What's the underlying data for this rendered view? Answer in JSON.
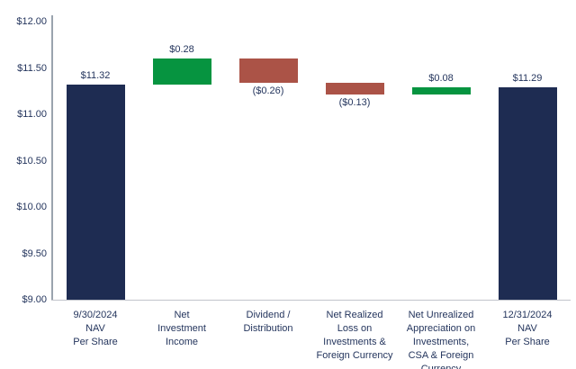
{
  "colors": {
    "navy": "#1e2c52",
    "green": "#069440",
    "red": "#ab5347",
    "label_text": "#24355d",
    "y_axis_line": "#9aa3ae",
    "baseline": "#c2c5cb",
    "background": "#ffffff"
  },
  "chart_data": {
    "type": "bar",
    "subtype": "waterfall",
    "title": "",
    "xlabel": "",
    "ylabel": "",
    "ylim": [
      9.0,
      12.0
    ],
    "grid": false,
    "legend": false,
    "y_ticks": [
      {
        "value": 12.0,
        "label": "$12.00"
      },
      {
        "value": 11.5,
        "label": "$11.50"
      },
      {
        "value": 11.0,
        "label": "$11.00"
      },
      {
        "value": 10.5,
        "label": "$10.50"
      },
      {
        "value": 10.0,
        "label": "$10.00"
      },
      {
        "value": 9.5,
        "label": "$9.50"
      },
      {
        "value": 9.0,
        "label": "$9.00"
      }
    ],
    "categories": [
      [
        "9/30/2024",
        "NAV",
        "Per Share"
      ],
      [
        "Net",
        "Investment",
        "Income"
      ],
      [
        "Dividend /",
        "Distribution"
      ],
      [
        "Net Realized",
        "Loss on",
        "Investments &",
        "Foreign Currency"
      ],
      [
        "Net Unrealized",
        "Appreciation on",
        "Investments,",
        "CSA & Foreign",
        "Currency"
      ],
      [
        "12/31/2024",
        "NAV",
        "Per Share"
      ]
    ],
    "values": [
      11.32,
      0.28,
      -0.26,
      -0.13,
      0.08,
      11.29
    ],
    "bars": [
      {
        "label": "$11.32",
        "start": 9.0,
        "end": 11.32,
        "color_key": "navy",
        "label_position": "above"
      },
      {
        "label": "$0.28",
        "start": 11.32,
        "end": 11.6,
        "color_key": "green",
        "label_position": "above"
      },
      {
        "label": "($0.26)",
        "start": 11.6,
        "end": 11.34,
        "color_key": "red",
        "label_position": "below"
      },
      {
        "label": "($0.13)",
        "start": 11.34,
        "end": 11.21,
        "color_key": "red",
        "label_position": "below"
      },
      {
        "label": "$0.08",
        "start": 11.21,
        "end": 11.29,
        "color_key": "green",
        "label_position": "above"
      },
      {
        "label": "$11.29",
        "start": 9.0,
        "end": 11.29,
        "color_key": "navy",
        "label_position": "above"
      }
    ]
  }
}
